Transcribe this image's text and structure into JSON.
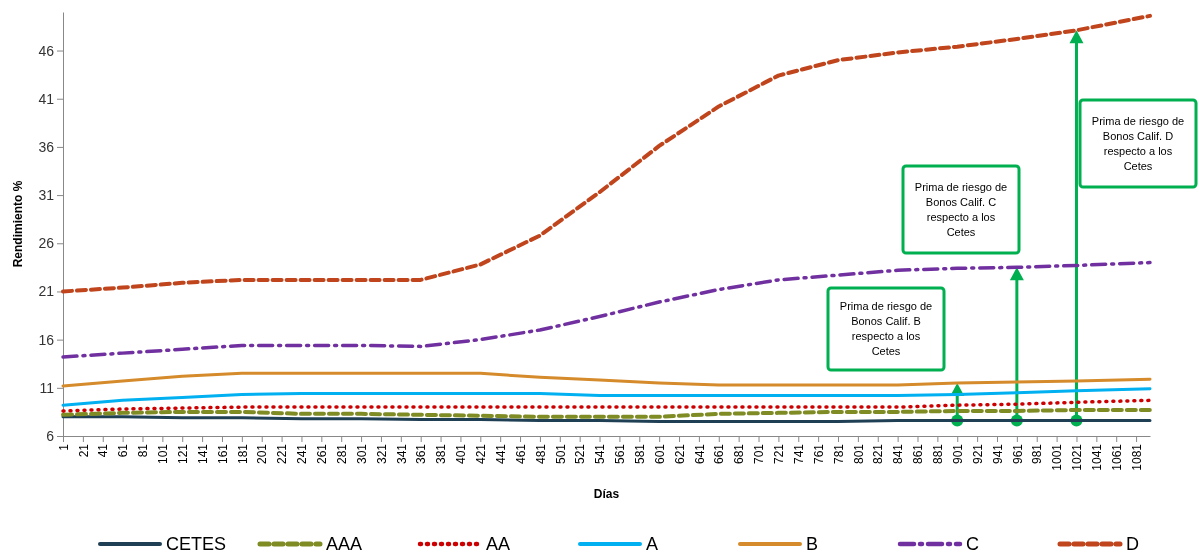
{
  "chart_data": {
    "type": "line",
    "xlabel": "Días",
    "ylabel": "Rendimiento %",
    "xlim": [
      1,
      1095
    ],
    "ylim": [
      6,
      50
    ],
    "xticks": [
      1,
      21,
      41,
      61,
      81,
      101,
      121,
      141,
      161,
      181,
      201,
      221,
      241,
      261,
      281,
      301,
      321,
      341,
      361,
      381,
      401,
      421,
      441,
      461,
      481,
      501,
      521,
      541,
      561,
      581,
      601,
      621,
      641,
      661,
      681,
      701,
      721,
      741,
      761,
      781,
      801,
      821,
      841,
      861,
      881,
      901,
      921,
      941,
      961,
      981,
      1001,
      1021,
      1041,
      1061,
      1081
    ],
    "yticks": [
      6,
      11,
      16,
      21,
      26,
      31,
      36,
      41,
      46
    ],
    "legend": "bottom",
    "grid": false,
    "x": [
      1,
      61,
      121,
      181,
      241,
      301,
      361,
      421,
      481,
      541,
      601,
      661,
      721,
      781,
      841,
      901,
      961,
      1021,
      1095
    ],
    "series": [
      {
        "name": "CETES",
        "color": "#1f3f55",
        "line_style": "solid",
        "values": [
          8.0,
          8.0,
          7.9,
          7.9,
          7.8,
          7.8,
          7.7,
          7.7,
          7.6,
          7.6,
          7.5,
          7.5,
          7.5,
          7.5,
          7.6,
          7.6,
          7.6,
          7.6,
          7.6
        ]
      },
      {
        "name": "AAA",
        "color": "#7f8c24",
        "line_style": "dashed",
        "values": [
          8.2,
          8.4,
          8.5,
          8.5,
          8.3,
          8.3,
          8.2,
          8.1,
          8.0,
          8.0,
          8.0,
          8.3,
          8.4,
          8.5,
          8.5,
          8.6,
          8.6,
          8.7,
          8.7
        ]
      },
      {
        "name": "AA",
        "color": "#cc0000",
        "line_style": "dotted",
        "values": [
          8.6,
          8.8,
          8.9,
          9.0,
          9.0,
          9.0,
          9.0,
          9.0,
          9.0,
          9.0,
          9.0,
          9.0,
          9.0,
          9.0,
          9.0,
          9.2,
          9.3,
          9.5,
          9.7
        ]
      },
      {
        "name": "A",
        "color": "#00b0f0",
        "line_style": "solid",
        "values": [
          9.2,
          9.7,
          10.0,
          10.3,
          10.4,
          10.4,
          10.4,
          10.4,
          10.4,
          10.2,
          10.2,
          10.2,
          10.2,
          10.2,
          10.2,
          10.3,
          10.5,
          10.7,
          10.9
        ]
      },
      {
        "name": "B",
        "color": "#d58b2b",
        "line_style": "solid",
        "values": [
          11.2,
          11.7,
          12.2,
          12.5,
          12.5,
          12.5,
          12.5,
          12.5,
          12.1,
          11.8,
          11.5,
          11.3,
          11.3,
          11.3,
          11.3,
          11.5,
          11.6,
          11.7,
          11.9
        ]
      },
      {
        "name": "C",
        "color": "#7030a0",
        "line_style": "dashdot",
        "values": [
          14.2,
          14.6,
          15.0,
          15.4,
          15.4,
          15.4,
          15.3,
          16.0,
          17.0,
          18.4,
          19.9,
          21.2,
          22.2,
          22.7,
          23.2,
          23.4,
          23.5,
          23.7,
          24.0
        ]
      },
      {
        "name": "D",
        "color": "#c0441c",
        "line_style": "dashed",
        "values": [
          21.0,
          21.4,
          21.9,
          22.2,
          22.2,
          22.2,
          22.2,
          23.8,
          26.8,
          31.3,
          36.1,
          40.2,
          43.4,
          45.0,
          45.8,
          46.4,
          47.2,
          48.1,
          49.6
        ]
      }
    ],
    "annotations": [
      "Prima de riesgo de Bonos Calif. B respecto a los Cetes",
      "Prima de riesgo de Bonos Calif. C respecto a los Cetes",
      "Prima de riesgo de Bonos Calif. D respecto a los Cetes"
    ]
  }
}
